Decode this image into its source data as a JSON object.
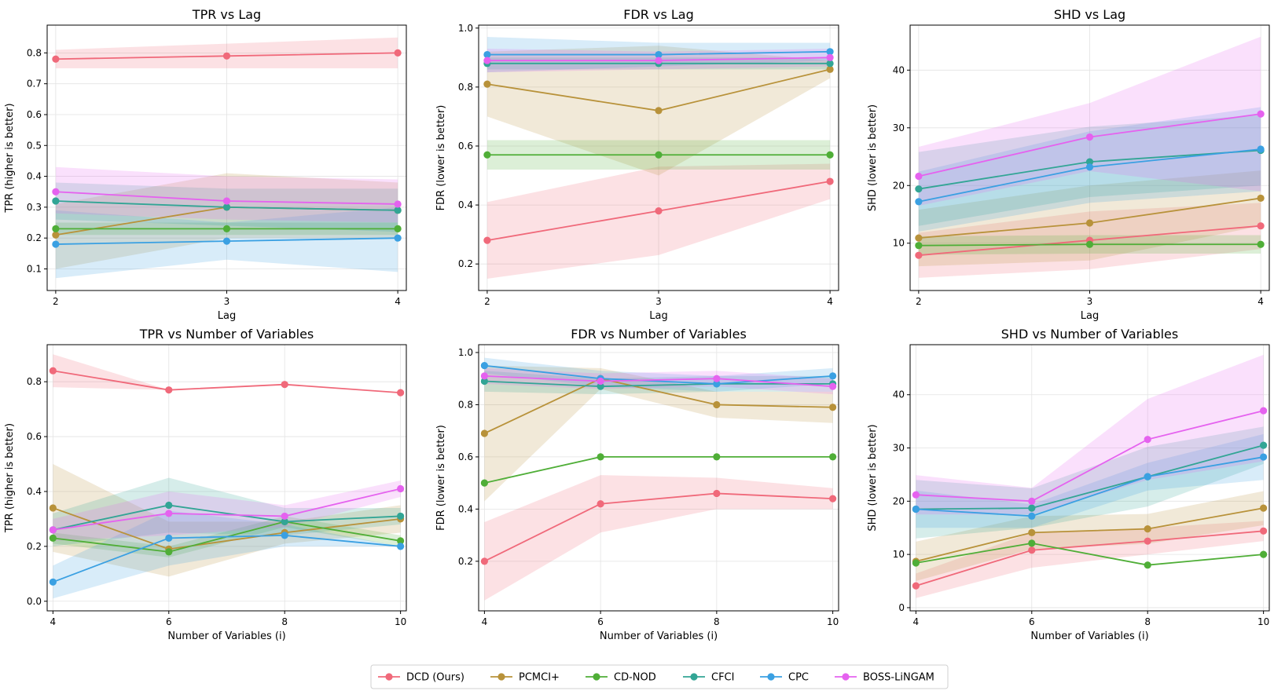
{
  "colors": {
    "DCD (Ours)": "#f0697a",
    "PCMCI+": "#b8923a",
    "CD-NOD": "#4fae37",
    "CFCI": "#32a595",
    "CPC": "#3aa0e2",
    "BOSS-LiNGAM": "#e562ef"
  },
  "legend": [
    "DCD (Ours)",
    "PCMCI+",
    "CD-NOD",
    "CFCI",
    "CPC",
    "BOSS-LiNGAM"
  ],
  "chart_data": [
    {
      "type": "line",
      "title": "TPR vs Lag",
      "xlabel": "Lag",
      "ylabel": "TPR (higher is better)",
      "x": [
        2,
        3,
        4
      ],
      "xticks": [
        "2",
        "3",
        "4"
      ],
      "xlim": [
        1.95,
        4.05
      ],
      "ylim": [
        0.03,
        0.89
      ],
      "yticks": [
        0.1,
        0.2,
        0.3,
        0.4,
        0.5,
        0.6,
        0.7,
        0.8
      ],
      "ytick_labels": [
        "0.1",
        "0.2",
        "0.3",
        "0.4",
        "0.5",
        "0.6",
        "0.7",
        "0.8"
      ],
      "series": [
        {
          "name": "DCD (Ours)",
          "values": [
            0.78,
            0.79,
            0.8
          ],
          "lower": [
            0.75,
            0.75,
            0.75
          ],
          "upper": [
            0.81,
            0.83,
            0.85
          ]
        },
        {
          "name": "PCMCI+",
          "values": [
            0.21,
            0.3,
            0.29
          ],
          "lower": [
            0.1,
            0.2,
            0.2
          ],
          "upper": [
            0.31,
            0.41,
            0.38
          ]
        },
        {
          "name": "CD-NOD",
          "values": [
            0.23,
            0.23,
            0.23
          ],
          "lower": [
            0.21,
            0.21,
            0.21
          ],
          "upper": [
            0.25,
            0.25,
            0.25
          ]
        },
        {
          "name": "CFCI",
          "values": [
            0.32,
            0.3,
            0.29
          ],
          "lower": [
            0.26,
            0.24,
            0.22
          ],
          "upper": [
            0.38,
            0.36,
            0.36
          ]
        },
        {
          "name": "CPC",
          "values": [
            0.18,
            0.19,
            0.2
          ],
          "lower": [
            0.07,
            0.13,
            0.09
          ],
          "upper": [
            0.29,
            0.25,
            0.3
          ]
        },
        {
          "name": "BOSS-LiNGAM",
          "values": [
            0.35,
            0.32,
            0.31
          ],
          "lower": [
            0.28,
            0.26,
            0.25
          ],
          "upper": [
            0.43,
            0.4,
            0.39
          ]
        }
      ]
    },
    {
      "type": "line",
      "title": "FDR vs Lag",
      "xlabel": "Lag",
      "ylabel": "FDR (lower is better)",
      "x": [
        2,
        3,
        4
      ],
      "xticks": [
        "2",
        "3",
        "4"
      ],
      "xlim": [
        1.95,
        4.05
      ],
      "ylim": [
        0.11,
        1.01
      ],
      "yticks": [
        0.2,
        0.4,
        0.6,
        0.8,
        1.0
      ],
      "ytick_labels": [
        "0.2",
        "0.4",
        "0.6",
        "0.8",
        "1.0"
      ],
      "series": [
        {
          "name": "DCD (Ours)",
          "values": [
            0.28,
            0.38,
            0.48
          ],
          "lower": [
            0.15,
            0.23,
            0.42
          ],
          "upper": [
            0.41,
            0.53,
            0.54
          ]
        },
        {
          "name": "PCMCI+",
          "values": [
            0.81,
            0.72,
            0.86
          ],
          "lower": [
            0.7,
            0.5,
            0.83
          ],
          "upper": [
            0.92,
            0.94,
            0.89
          ]
        },
        {
          "name": "CD-NOD",
          "values": [
            0.57,
            0.57,
            0.57
          ],
          "lower": [
            0.52,
            0.52,
            0.52
          ],
          "upper": [
            0.62,
            0.62,
            0.62
          ]
        },
        {
          "name": "CFCI",
          "values": [
            0.88,
            0.88,
            0.88
          ],
          "lower": [
            0.86,
            0.86,
            0.86
          ],
          "upper": [
            0.9,
            0.9,
            0.9
          ]
        },
        {
          "name": "CPC",
          "values": [
            0.91,
            0.91,
            0.92
          ],
          "lower": [
            0.85,
            0.87,
            0.89
          ],
          "upper": [
            0.97,
            0.95,
            0.95
          ]
        },
        {
          "name": "BOSS-LiNGAM",
          "values": [
            0.89,
            0.89,
            0.9
          ],
          "lower": [
            0.85,
            0.86,
            0.87
          ],
          "upper": [
            0.93,
            0.92,
            0.93
          ]
        }
      ]
    },
    {
      "type": "line",
      "title": "SHD vs Lag",
      "xlabel": "Lag",
      "ylabel": "SHD (lower is better)",
      "x": [
        2,
        3,
        4
      ],
      "xticks": [
        "2",
        "3",
        "4"
      ],
      "xlim": [
        1.95,
        4.05
      ],
      "ylim": [
        1.8,
        47.8
      ],
      "yticks": [
        10,
        20,
        30,
        40
      ],
      "ytick_labels": [
        "10",
        "20",
        "30",
        "40"
      ],
      "series": [
        {
          "name": "DCD (Ours)",
          "values": [
            7.9,
            10.5,
            13.0
          ],
          "lower": [
            4.0,
            5.5,
            9.0
          ],
          "upper": [
            11.8,
            15.5,
            17.0
          ]
        },
        {
          "name": "PCMCI+",
          "values": [
            10.9,
            13.5,
            17.8
          ],
          "lower": [
            6.0,
            7.0,
            13.0
          ],
          "upper": [
            15.8,
            20.0,
            22.6
          ]
        },
        {
          "name": "CD-NOD",
          "values": [
            9.6,
            9.8,
            9.8
          ],
          "lower": [
            8.0,
            8.2,
            8.2
          ],
          "upper": [
            11.2,
            11.4,
            11.4
          ]
        },
        {
          "name": "CFCI",
          "values": [
            19.4,
            24.1,
            26.1
          ],
          "lower": [
            13.0,
            18.0,
            20.0
          ],
          "upper": [
            25.8,
            30.2,
            32.2
          ]
        },
        {
          "name": "CPC",
          "values": [
            17.2,
            23.2,
            26.3
          ],
          "lower": [
            12.0,
            17.0,
            19.0
          ],
          "upper": [
            22.4,
            29.4,
            33.6
          ]
        },
        {
          "name": "BOSS-LiNGAM",
          "values": [
            21.6,
            28.4,
            32.4
          ],
          "lower": [
            16.5,
            22.5,
            19.0
          ],
          "upper": [
            26.7,
            34.3,
            45.8
          ]
        }
      ]
    },
    {
      "type": "line",
      "title": "TPR vs Number of Variables",
      "xlabel": "Number of Variables (i)",
      "ylabel": "TPR (higher is better)",
      "x": [
        4,
        6,
        8,
        10
      ],
      "xticks": [
        "4",
        "6",
        "8",
        "10"
      ],
      "xlim": [
        3.9,
        10.1
      ],
      "ylim": [
        -0.035,
        0.935
      ],
      "yticks": [
        0.0,
        0.2,
        0.4,
        0.6,
        0.8
      ],
      "ytick_labels": [
        "0.0",
        "0.2",
        "0.4",
        "0.6",
        "0.8"
      ],
      "series": [
        {
          "name": "DCD (Ours)",
          "values": [
            0.84,
            0.77,
            0.79,
            0.76
          ],
          "lower": [
            0.78,
            0.77,
            0.79,
            0.76
          ],
          "upper": [
            0.9,
            0.77,
            0.79,
            0.76
          ]
        },
        {
          "name": "PCMCI+",
          "values": [
            0.34,
            0.19,
            0.25,
            0.3
          ],
          "lower": [
            0.18,
            0.09,
            0.21,
            0.25
          ],
          "upper": [
            0.5,
            0.29,
            0.29,
            0.35
          ]
        },
        {
          "name": "CD-NOD",
          "values": [
            0.23,
            0.18,
            0.29,
            0.22
          ],
          "lower": [
            0.21,
            0.16,
            0.27,
            0.2
          ],
          "upper": [
            0.25,
            0.2,
            0.31,
            0.24
          ]
        },
        {
          "name": "CFCI",
          "values": [
            0.26,
            0.35,
            0.29,
            0.31
          ],
          "lower": [
            0.2,
            0.25,
            0.24,
            0.28
          ],
          "upper": [
            0.32,
            0.45,
            0.34,
            0.34
          ]
        },
        {
          "name": "CPC",
          "values": [
            0.07,
            0.23,
            0.24,
            0.2
          ],
          "lower": [
            0.01,
            0.13,
            0.2,
            0.2
          ],
          "upper": [
            0.13,
            0.33,
            0.28,
            0.2
          ]
        },
        {
          "name": "BOSS-LiNGAM",
          "values": [
            0.26,
            0.32,
            0.31,
            0.41
          ],
          "lower": [
            0.22,
            0.24,
            0.27,
            0.38
          ],
          "upper": [
            0.3,
            0.4,
            0.35,
            0.44
          ]
        }
      ]
    },
    {
      "type": "line",
      "title": "FDR vs Number of Variables",
      "xlabel": "Number of Variables (i)",
      "ylabel": "FDR (lower is better)",
      "x": [
        4,
        6,
        8,
        10
      ],
      "xticks": [
        "4",
        "6",
        "8",
        "10"
      ],
      "xlim": [
        3.9,
        10.1
      ],
      "ylim": [
        0.01,
        1.03
      ],
      "yticks": [
        0.2,
        0.4,
        0.6,
        0.8,
        1.0
      ],
      "ytick_labels": [
        "0.2",
        "0.4",
        "0.6",
        "0.8",
        "1.0"
      ],
      "series": [
        {
          "name": "DCD (Ours)",
          "values": [
            0.2,
            0.42,
            0.46,
            0.44
          ],
          "lower": [
            0.05,
            0.31,
            0.4,
            0.4
          ],
          "upper": [
            0.35,
            0.53,
            0.52,
            0.48
          ]
        },
        {
          "name": "PCMCI+",
          "values": [
            0.69,
            0.9,
            0.8,
            0.79
          ],
          "lower": [
            0.43,
            0.86,
            0.75,
            0.73
          ],
          "upper": [
            0.95,
            0.94,
            0.85,
            0.85
          ]
        },
        {
          "name": "CD-NOD",
          "values": [
            0.5,
            0.6,
            0.6,
            0.6
          ],
          "lower": [
            0.5,
            0.6,
            0.6,
            0.6
          ],
          "upper": [
            0.5,
            0.6,
            0.6,
            0.6
          ]
        },
        {
          "name": "CFCI",
          "values": [
            0.89,
            0.87,
            0.88,
            0.88
          ],
          "lower": [
            0.85,
            0.84,
            0.85,
            0.85
          ],
          "upper": [
            0.93,
            0.9,
            0.91,
            0.91
          ]
        },
        {
          "name": "CPC",
          "values": [
            0.95,
            0.9,
            0.88,
            0.91
          ],
          "lower": [
            0.92,
            0.87,
            0.85,
            0.88
          ],
          "upper": [
            0.98,
            0.93,
            0.91,
            0.94
          ]
        },
        {
          "name": "BOSS-LiNGAM",
          "values": [
            0.91,
            0.89,
            0.9,
            0.87
          ],
          "lower": [
            0.88,
            0.86,
            0.87,
            0.84
          ],
          "upper": [
            0.94,
            0.92,
            0.93,
            0.9
          ]
        }
      ]
    },
    {
      "type": "line",
      "title": "SHD vs Number of Variables",
      "xlabel": "Number of Variables (i)",
      "ylabel": "SHD (lower is better)",
      "x": [
        4,
        6,
        8,
        10
      ],
      "xticks": [
        "4",
        "6",
        "8",
        "10"
      ],
      "xlim": [
        3.9,
        10.1
      ],
      "ylim": [
        -0.6,
        49.4
      ],
      "yticks": [
        0,
        10,
        20,
        30,
        40
      ],
      "ytick_labels": [
        "0",
        "10",
        "20",
        "30",
        "40"
      ],
      "series": [
        {
          "name": "DCD (Ours)",
          "values": [
            4.1,
            10.8,
            12.5,
            14.4
          ],
          "lower": [
            1.8,
            7.5,
            10.0,
            12.5
          ],
          "upper": [
            6.4,
            14.1,
            15.0,
            16.3
          ]
        },
        {
          "name": "PCMCI+",
          "values": [
            8.7,
            14.1,
            14.8,
            18.7
          ],
          "lower": [
            5.0,
            11.0,
            12.0,
            15.5
          ],
          "upper": [
            12.4,
            17.2,
            17.6,
            21.9
          ]
        },
        {
          "name": "CD-NOD",
          "values": [
            8.4,
            12.1,
            8.0,
            10.0
          ],
          "lower": [
            8.4,
            12.1,
            8.0,
            10.0
          ],
          "upper": [
            8.4,
            12.1,
            8.0,
            10.0
          ]
        },
        {
          "name": "CFCI",
          "values": [
            18.5,
            18.7,
            24.6,
            30.5
          ],
          "lower": [
            13.0,
            15.0,
            19.0,
            27.0
          ],
          "upper": [
            24.0,
            22.4,
            30.2,
            34.0
          ]
        },
        {
          "name": "CPC",
          "values": [
            18.5,
            17.2,
            24.6,
            28.3
          ],
          "lower": [
            15.0,
            15.0,
            22.0,
            24.0
          ],
          "upper": [
            22.0,
            19.4,
            27.2,
            32.6
          ]
        },
        {
          "name": "BOSS-LiNGAM",
          "values": [
            21.2,
            20.0,
            31.6,
            37.0
          ],
          "lower": [
            17.5,
            17.5,
            24.0,
            27.5
          ],
          "upper": [
            24.9,
            22.5,
            39.2,
            47.5
          ]
        }
      ]
    }
  ]
}
